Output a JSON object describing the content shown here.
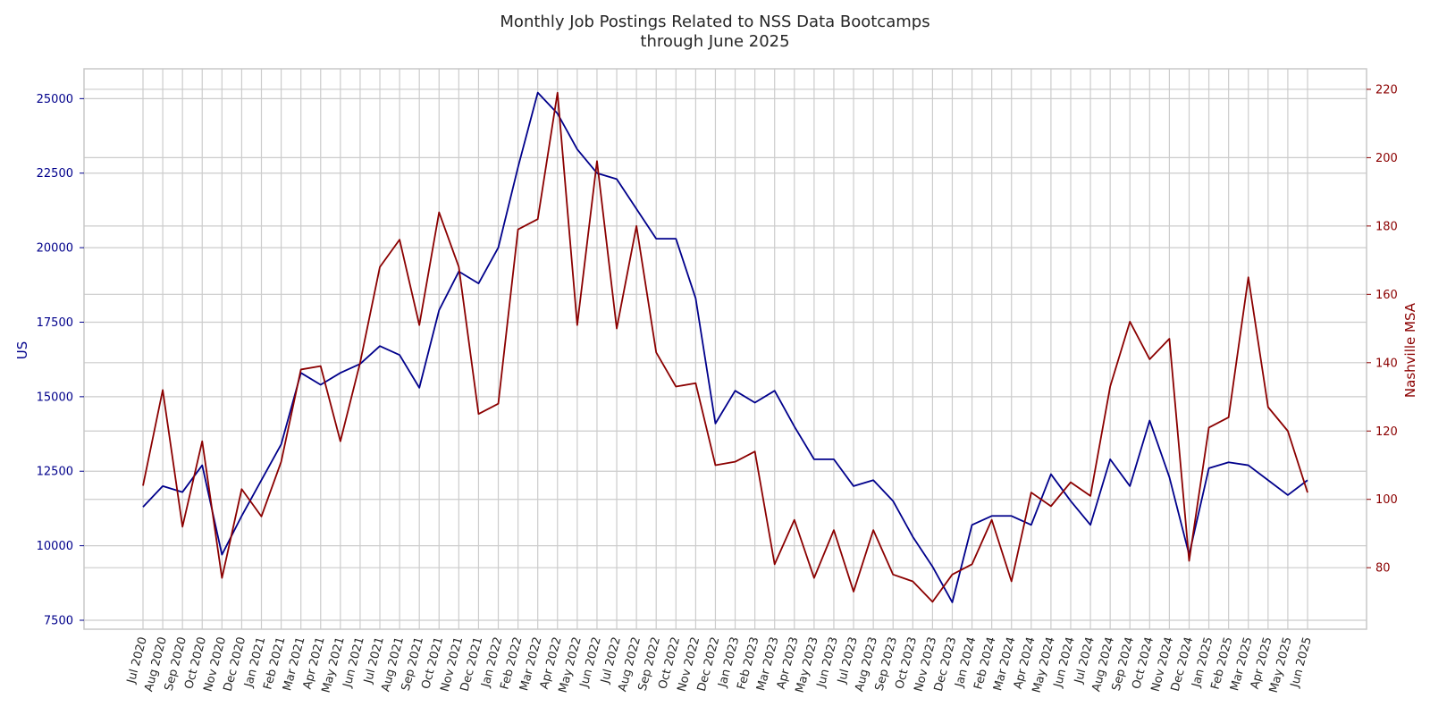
{
  "chart_data": {
    "type": "line",
    "title_line1": "Monthly Job Postings Related to NSS Data Bootcamps",
    "title_line2": "through June 2025",
    "y_left_label": "US",
    "y_right_label": "Nashville MSA",
    "grid": true,
    "y_left_lim": [
      7200,
      26000
    ],
    "y_right_lim": [
      62,
      226
    ],
    "y_left_ticks": [
      7500,
      10000,
      12500,
      15000,
      17500,
      20000,
      22500,
      25000
    ],
    "y_right_ticks": [
      80,
      100,
      120,
      140,
      160,
      180,
      200,
      220
    ],
    "x": [
      "Jul 2020",
      "Aug 2020",
      "Sep 2020",
      "Oct 2020",
      "Nov 2020",
      "Dec 2020",
      "Jan 2021",
      "Feb 2021",
      "Mar 2021",
      "Apr 2021",
      "May 2021",
      "Jun 2021",
      "Jul 2021",
      "Aug 2021",
      "Sep 2021",
      "Oct 2021",
      "Nov 2021",
      "Dec 2021",
      "Jan 2022",
      "Feb 2022",
      "Mar 2022",
      "Apr 2022",
      "May 2022",
      "Jun 2022",
      "Jul 2022",
      "Aug 2022",
      "Sep 2022",
      "Oct 2022",
      "Nov 2022",
      "Dec 2022",
      "Jan 2023",
      "Feb 2023",
      "Mar 2023",
      "Apr 2023",
      "May 2023",
      "Jun 2023",
      "Jul 2023",
      "Aug 2023",
      "Sep 2023",
      "Oct 2023",
      "Nov 2023",
      "Dec 2023",
      "Jan 2024",
      "Feb 2024",
      "Mar 2024",
      "Apr 2024",
      "May 2024",
      "Jun 2024",
      "Jul 2024",
      "Aug 2024",
      "Sep 2024",
      "Oct 2024",
      "Nov 2024",
      "Dec 2024",
      "Jan 2025",
      "Feb 2025",
      "Mar 2025",
      "Apr 2025",
      "May 2025",
      "Jun 2025"
    ],
    "series": [
      {
        "name": "US",
        "axis": "left",
        "color": "#00008b",
        "values": [
          11300,
          12000,
          11800,
          12700,
          9700,
          11000,
          12200,
          13400,
          15800,
          15400,
          15800,
          16100,
          16700,
          16400,
          15300,
          17900,
          19200,
          18800,
          20000,
          22700,
          25200,
          24500,
          23300,
          22500,
          22300,
          21300,
          20300,
          20300,
          18300,
          14100,
          15200,
          14800,
          15200,
          14000,
          12900,
          12900,
          12000,
          12200,
          11500,
          10300,
          9300,
          8100,
          10700,
          11000,
          11000,
          10700,
          12400,
          11500,
          10700,
          12900,
          12000,
          14200,
          12300,
          9700,
          12600,
          12800,
          12700,
          12200,
          11700,
          12200
        ]
      },
      {
        "name": "Nashville MSA",
        "axis": "right",
        "color": "#8b0000",
        "values": [
          104,
          132,
          92,
          117,
          77,
          103,
          95,
          111,
          138,
          139,
          117,
          140,
          168,
          176,
          151,
          184,
          168,
          125,
          128,
          179,
          182,
          219,
          151,
          199,
          150,
          180,
          143,
          133,
          134,
          110,
          111,
          114,
          81,
          94,
          77,
          91,
          73,
          91,
          78,
          76,
          70,
          78,
          81,
          94,
          76,
          102,
          98,
          105,
          101,
          133,
          152,
          141,
          147,
          82,
          121,
          124,
          165,
          127,
          120,
          102
        ]
      }
    ]
  },
  "colors": {
    "us": "#00008b",
    "nashville": "#8b0000",
    "grid": "#cccccc",
    "frame": "#c8c8c8",
    "title": "#262626"
  }
}
